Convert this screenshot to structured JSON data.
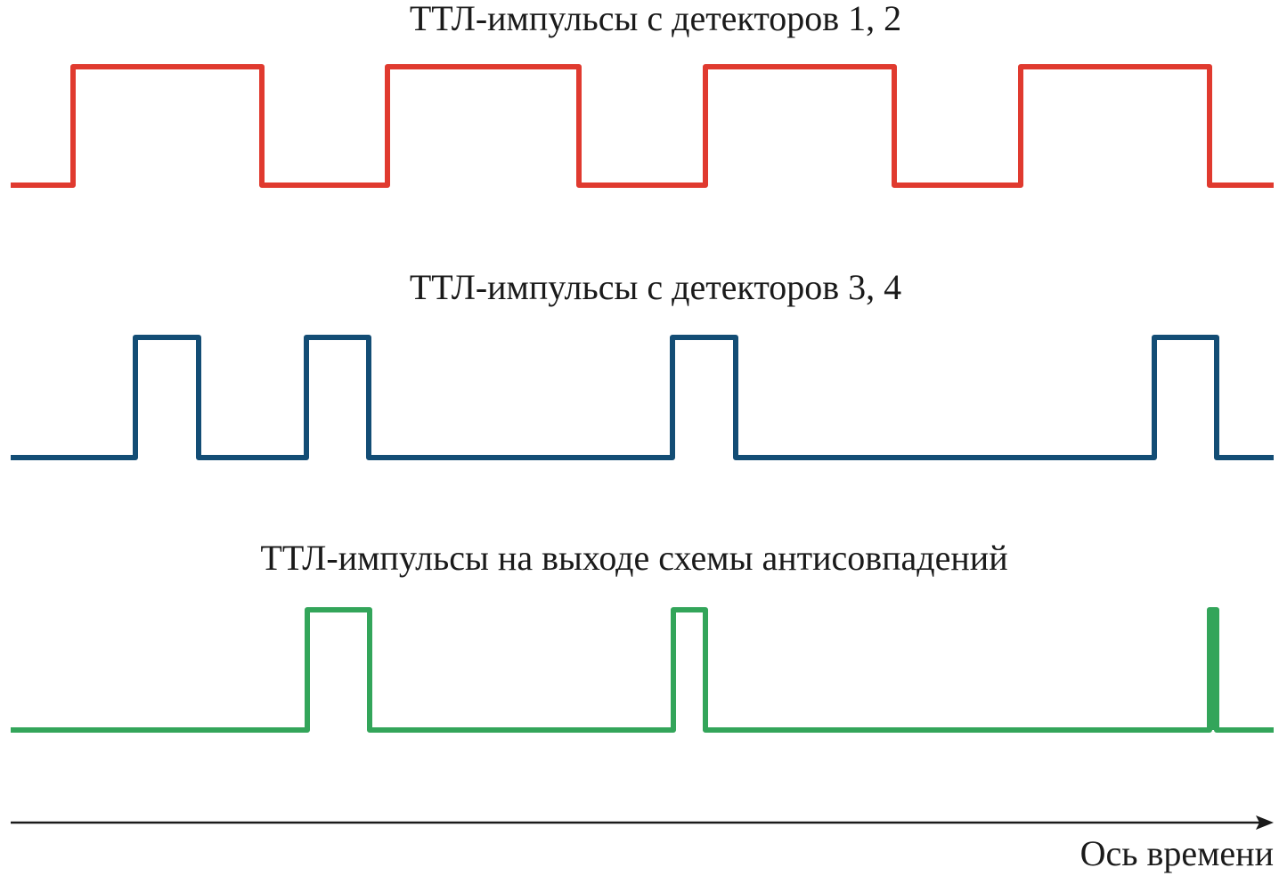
{
  "signals": [
    {
      "title": "ТТЛ-импульсы с детекторов 1, 2"
    },
    {
      "title": "ТТЛ-импульсы с детекторов 3, 4"
    },
    {
      "title": "ТТЛ-импульсы на выходе схемы антисовпадений"
    }
  ],
  "axis": {
    "label": "Ось времени"
  }
}
